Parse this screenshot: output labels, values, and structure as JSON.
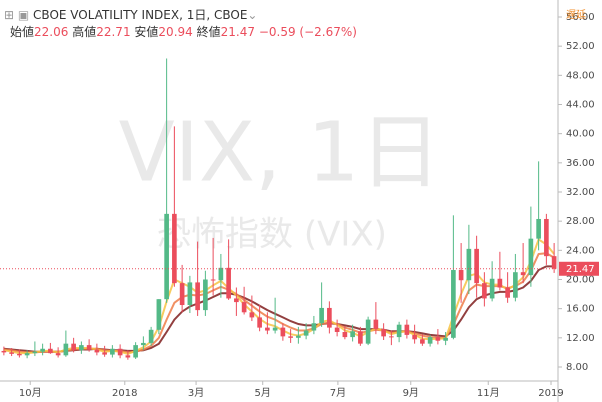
{
  "header": {
    "symbol": "CBOE VOLATILITY INDEX, 1日, CBOE",
    "delayed": "遅延",
    "ohlc": [
      {
        "label": "始値",
        "value": 22.06
      },
      {
        "label": "高値",
        "value": 22.71
      },
      {
        "label": "安値",
        "value": 20.94
      },
      {
        "label": "終値",
        "value": 21.47
      }
    ],
    "change": "−0.59 (−2.67%)"
  },
  "chart_data": {
    "type": "candlestick",
    "watermark": "VIX, 1日",
    "watermark_sub": "恐怖指数 (VIX)",
    "up_color": "#53b987",
    "down_color": "#eb4d5c",
    "xlim": [
      0,
      72
    ],
    "xticks": [
      {
        "value": 3.9,
        "label": "10月"
      },
      {
        "value": 16.1,
        "label": "2018"
      },
      {
        "value": 25.3,
        "label": "3月"
      },
      {
        "value": 33.9,
        "label": "5月"
      },
      {
        "value": 43.6,
        "label": "7月"
      },
      {
        "value": 53.0,
        "label": "9月"
      },
      {
        "value": 63.0,
        "label": "11月"
      },
      {
        "value": 71.1,
        "label": "2019"
      }
    ],
    "ylim": [
      6.49,
      58.33
    ],
    "yticks": [
      {
        "value": 8,
        "label": "8.00"
      },
      {
        "value": 12,
        "label": "12.00"
      },
      {
        "value": 16,
        "label": "16.00"
      },
      {
        "value": 20,
        "label": "20.00"
      },
      {
        "value": 24,
        "label": "24.00"
      },
      {
        "value": 28,
        "label": "28.00"
      },
      {
        "value": 32,
        "label": "32.00"
      },
      {
        "value": 36,
        "label": "36.00"
      },
      {
        "value": 40,
        "label": "40.00"
      },
      {
        "value": 44,
        "label": "44.00"
      },
      {
        "value": 48,
        "label": "48.00"
      },
      {
        "value": 52,
        "label": "52.00"
      },
      {
        "value": 56,
        "label": "56.00"
      }
    ],
    "last_price": {
      "value": 21.47,
      "label": "21.47"
    },
    "open": [
      10.2,
      10.0,
      9.8,
      9.6,
      9.9,
      10.1,
      10.5,
      9.9,
      9.6,
      11.2,
      10.3,
      11.0,
      10.4,
      10.0,
      9.7,
      10.5,
      9.6,
      9.3,
      11.0,
      11.3,
      13.1,
      17.3,
      29.0,
      19.5,
      16.5,
      19.6,
      15.8,
      20.0,
      19.9,
      21.6,
      17.4,
      16.9,
      15.5,
      14.8,
      13.4,
      13.0,
      13.4,
      12.2,
      12.0,
      12.3,
      13.0,
      14.0,
      16.1,
      13.4,
      12.8,
      12.1,
      12.9,
      11.2,
      14.5,
      13.2,
      12.2,
      12.1,
      13.8,
      12.4,
      11.8,
      11.2,
      12.1,
      11.6,
      12.0,
      21.3,
      19.9,
      24.2,
      19.5,
      17.4,
      20.1,
      18.9,
      17.5,
      21.0,
      20.6,
      25.6,
      28.3,
      23.2
    ],
    "high": [
      10.8,
      10.6,
      10.4,
      10.3,
      11.5,
      11.2,
      11.3,
      10.7,
      13.0,
      12.0,
      11.5,
      11.8,
      11.2,
      10.9,
      11.0,
      11.1,
      10.3,
      11.4,
      12.2,
      13.5,
      17.3,
      50.3,
      41.0,
      22.0,
      20.5,
      25.2,
      21.2,
      25.7,
      23.5,
      25.5,
      18.9,
      19.0,
      17.8,
      16.5,
      15.5,
      17.5,
      14.0,
      13.2,
      13.5,
      14.0,
      15.0,
      19.6,
      17.0,
      14.5,
      13.6,
      13.8,
      13.5,
      14.9,
      16.9,
      14.0,
      13.0,
      14.2,
      14.5,
      13.8,
      12.5,
      12.4,
      13.2,
      12.8,
      28.8,
      25.0,
      27.5,
      26.0,
      21.0,
      22.5,
      23.8,
      21.0,
      23.5,
      25.0,
      30.0,
      36.2,
      29.0,
      25.0
    ],
    "low": [
      9.6,
      9.5,
      9.3,
      9.2,
      9.5,
      9.6,
      9.8,
      9.3,
      9.4,
      10.0,
      9.8,
      10.1,
      9.6,
      9.4,
      9.3,
      9.2,
      9.0,
      9.1,
      10.3,
      10.9,
      12.5,
      16.8,
      19.0,
      15.5,
      15.4,
      15.0,
      15.0,
      17.8,
      17.5,
      17.2,
      15.0,
      15.2,
      14.3,
      12.9,
      12.5,
      12.6,
      11.6,
      11.3,
      11.2,
      11.8,
      12.5,
      13.5,
      12.6,
      12.2,
      11.8,
      11.5,
      10.9,
      11.0,
      12.5,
      11.7,
      11.0,
      11.4,
      11.9,
      11.2,
      10.9,
      10.8,
      11.1,
      11.0,
      11.8,
      16.8,
      18.0,
      17.5,
      16.3,
      17.0,
      18.5,
      16.8,
      17.0,
      19.5,
      19.0,
      24.0,
      22.0,
      20.9
    ],
    "close": [
      10.0,
      9.8,
      9.6,
      9.9,
      10.1,
      10.5,
      9.9,
      9.6,
      11.2,
      10.3,
      11.0,
      10.4,
      10.0,
      9.7,
      10.5,
      9.6,
      9.3,
      11.0,
      11.3,
      13.1,
      17.3,
      29.0,
      19.5,
      16.5,
      19.6,
      15.8,
      20.0,
      19.9,
      21.6,
      17.4,
      16.9,
      15.5,
      14.8,
      13.4,
      13.0,
      13.4,
      12.2,
      12.0,
      12.3,
      13.0,
      14.0,
      16.1,
      13.4,
      12.8,
      12.1,
      12.9,
      11.2,
      14.5,
      13.2,
      12.2,
      12.1,
      13.8,
      12.4,
      11.8,
      11.2,
      12.1,
      11.6,
      12.0,
      21.3,
      19.9,
      24.2,
      19.5,
      17.4,
      20.1,
      18.9,
      17.5,
      21.0,
      20.6,
      25.6,
      28.3,
      23.2,
      21.47
    ],
    "series": [
      {
        "color": "#7f1d1d",
        "values": [
          10.5,
          10.4,
          10.3,
          10.2,
          10.1,
          10.1,
          10.1,
          10.1,
          10.2,
          10.3,
          10.4,
          10.4,
          10.5,
          10.4,
          10.3,
          10.3,
          10.2,
          10.2,
          10.3,
          10.6,
          11.2,
          12.8,
          14.5,
          15.6,
          16.3,
          16.7,
          17.1,
          17.6,
          18.1,
          18.1,
          17.9,
          17.5,
          17.0,
          16.4,
          15.8,
          15.3,
          14.8,
          14.3,
          13.9,
          13.7,
          13.7,
          13.9,
          14.0,
          13.9,
          13.7,
          13.5,
          13.2,
          13.2,
          13.2,
          13.1,
          12.9,
          12.9,
          12.9,
          12.8,
          12.6,
          12.4,
          12.3,
          12.2,
          13.0,
          14.5,
          16.2,
          17.3,
          17.8,
          18.1,
          18.3,
          18.3,
          18.5,
          18.9,
          19.8,
          21.3,
          21.8,
          21.8
        ]
      },
      {
        "color": "#ef7d48",
        "values": [
          10.4,
          10.3,
          10.1,
          10.0,
          10.0,
          10.1,
          10.1,
          10.1,
          10.2,
          10.4,
          10.5,
          10.5,
          10.5,
          10.3,
          10.2,
          10.2,
          10.0,
          10.1,
          10.4,
          10.9,
          12.0,
          14.5,
          16.8,
          17.6,
          17.9,
          17.8,
          18.0,
          18.5,
          19.0,
          18.6,
          18.0,
          17.2,
          16.4,
          15.6,
          14.9,
          14.5,
          13.9,
          13.4,
          13.0,
          13.0,
          13.3,
          13.9,
          14.1,
          13.9,
          13.4,
          13.1,
          12.7,
          12.9,
          13.1,
          13.0,
          12.7,
          12.8,
          12.9,
          12.6,
          12.3,
          12.1,
          12.0,
          12.0,
          13.8,
          16.2,
          18.5,
          19.3,
          19.1,
          19.1,
          19.1,
          18.8,
          19.1,
          19.7,
          21.2,
          23.5,
          23.6,
          23.0
        ]
      },
      {
        "color": "#f6c343",
        "values": [
          10.3,
          10.1,
          9.9,
          9.9,
          10.0,
          10.2,
          10.2,
          10.0,
          10.4,
          10.6,
          10.6,
          10.6,
          10.4,
          10.1,
          10.2,
          10.1,
          9.8,
          10.2,
          10.7,
          11.5,
          13.5,
          17.0,
          20.0,
          19.5,
          19.0,
          18.2,
          18.5,
          19.2,
          19.8,
          18.8,
          17.8,
          16.6,
          15.6,
          14.6,
          13.9,
          13.6,
          13.0,
          12.5,
          12.3,
          12.6,
          13.2,
          14.2,
          14.4,
          13.8,
          13.0,
          12.7,
          12.2,
          12.8,
          13.3,
          13.0,
          12.5,
          12.8,
          12.9,
          12.4,
          11.9,
          11.8,
          11.9,
          11.9,
          15.0,
          18.0,
          20.5,
          20.8,
          19.6,
          19.3,
          19.3,
          18.6,
          19.3,
          20.3,
          22.5,
          25.5,
          24.8,
          23.5
        ]
      }
    ]
  }
}
